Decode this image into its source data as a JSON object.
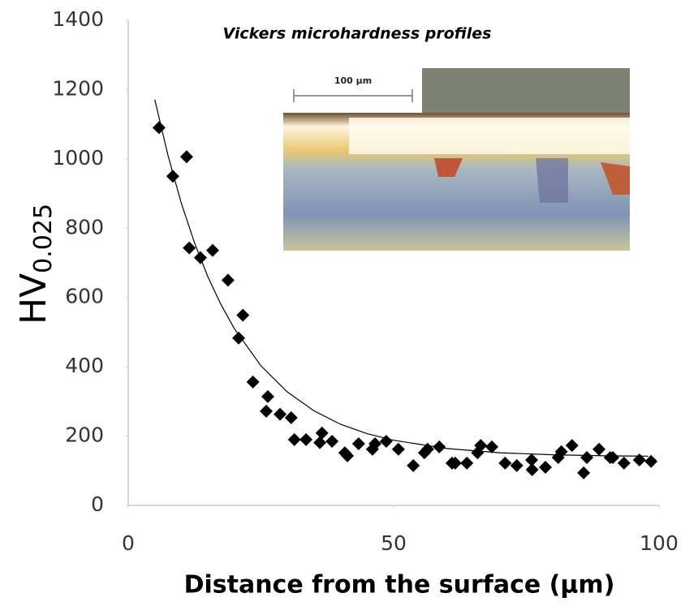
{
  "chart_data": {
    "type": "scatter",
    "title": "Vickers microhardness profiles",
    "x_label": "Distance from the surface (µm)",
    "y_label": "HV",
    "y_label_subscript": "0.025",
    "inset_scale_label": "100 µm",
    "xlim": [
      0,
      100
    ],
    "xticks": [
      0,
      50,
      100
    ],
    "ylim": [
      0,
      1400
    ],
    "yticks": [
      0,
      200,
      400,
      600,
      800,
      1000,
      1200,
      1400
    ],
    "marker_color": "#000000",
    "line_color": "#000000",
    "x": [
      5.8,
      8.4,
      11,
      11.5,
      13.6,
      15.9,
      18.8,
      21.6,
      20.8,
      23.5,
      26.3,
      26,
      28.6,
      30.7,
      31.3,
      33.5,
      36.1,
      36.5,
      38.4,
      40.8,
      41.3,
      43.4,
      46,
      46.5,
      48.6,
      50.9,
      53.7,
      55.8,
      56.4,
      58.6,
      61,
      61.6,
      63.8,
      65.8,
      66.4,
      68.5,
      71,
      73.2,
      76,
      76.1,
      78.6,
      81,
      81.6,
      83.6,
      85.8,
      86.4,
      88.7,
      90.8,
      91.3,
      93.4,
      96.3,
      98.5
    ],
    "values": [
      1090,
      950,
      1006,
      743,
      715,
      736,
      650,
      549,
      483,
      356,
      314,
      272,
      263,
      253,
      190,
      190,
      181,
      209,
      185,
      152,
      143,
      178,
      162,
      178,
      185,
      162,
      115,
      152,
      162,
      169,
      122,
      122,
      122,
      152,
      173,
      169,
      122,
      115,
      131,
      103,
      110,
      138,
      155,
      173,
      94,
      138,
      162,
      138,
      138,
      122,
      131,
      127
    ],
    "fit_x": [
      5,
      7.5,
      10,
      12.5,
      15,
      17.5,
      20,
      25,
      30,
      35,
      40,
      45,
      50,
      60,
      70,
      80,
      90,
      98
    ],
    "fit_values": [
      1171,
      1009,
      872,
      757,
      660,
      579,
      510,
      403,
      327,
      273,
      234,
      207,
      188,
      164,
      152,
      146,
      143,
      142
    ]
  }
}
